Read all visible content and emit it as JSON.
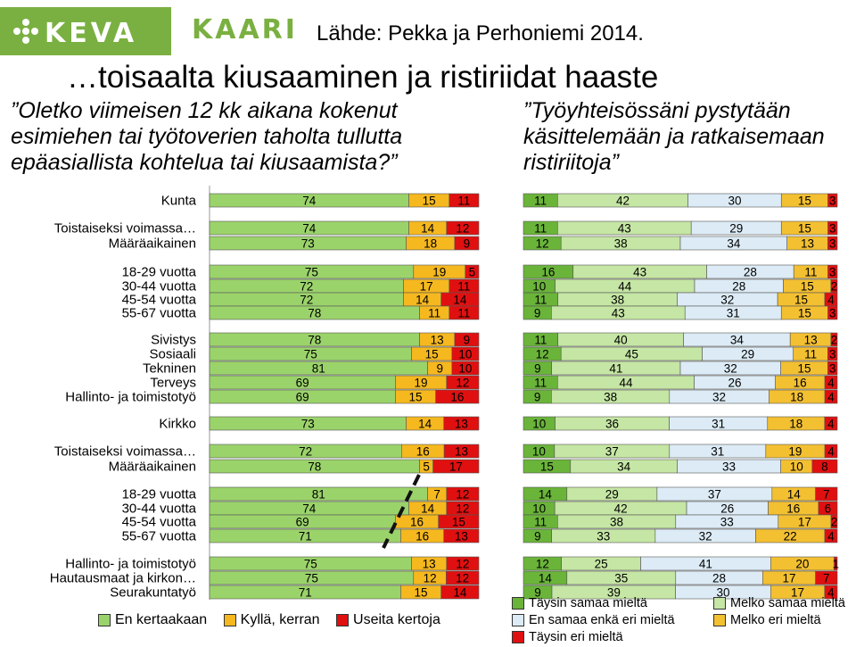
{
  "header": {
    "keva_logo": "KEVA",
    "kaari_logo": "KAARI",
    "source": "Lähde: Pekka ja Perhoniemi 2014."
  },
  "title": "…toisaalta kiusaaminen ja ristiriidat haaste",
  "question_left": "”Oletko viimeisen 12 kk aikana kokenut esimiehen tai työtoverien taholta tullutta epäasiallista kohtelua tai kiusaamista?”",
  "question_right": "”Työyhteisössäni pystytään käsittelemään ja ratkaisemaan ristiriitoja”",
  "colors": {
    "never": "#9bd36b",
    "once": "#f5b81f",
    "often": "#e01010",
    "agree_full": "#6ab43a",
    "agree_some": "#c5e6a4",
    "neutral": "#dcebf5",
    "disagree_some": "#f3c032",
    "disagree_full": "#e01010"
  },
  "chart_data": [
    {
      "type": "bar",
      "stacked": true,
      "orientation": "horizontal",
      "categories": [
        "Kunta",
        "Toistaiseksi voimassa…",
        "Määräaikainen",
        "18-29 vuotta",
        "30-44 vuotta",
        "45-54 vuotta",
        "55-67 vuotta",
        "Sivistys",
        "Sosiaali",
        "Tekninen",
        "Terveys",
        "Hallinto- ja toimistotyö",
        "Kirkko",
        "Toistaiseksi voimassa…",
        "Määräaikainen",
        "18-29 vuotta",
        "30-44 vuotta",
        "45-54 vuotta",
        "55-67 vuotta",
        "Hallinto- ja toimistotyö",
        "Hautausmaat ja kirkon…",
        "Seurakuntatyö"
      ],
      "series": [
        {
          "name": "En kertaakaan",
          "values": [
            74,
            74,
            73,
            75,
            72,
            72,
            78,
            78,
            75,
            81,
            69,
            69,
            73,
            72,
            78,
            81,
            74,
            69,
            71,
            75,
            75,
            71
          ]
        },
        {
          "name": "Kyllä, kerran",
          "values": [
            15,
            14,
            18,
            19,
            17,
            14,
            11,
            13,
            15,
            9,
            19,
            15,
            14,
            16,
            5,
            7,
            14,
            16,
            16,
            13,
            12,
            15
          ]
        },
        {
          "name": "Useita kertoja",
          "values": [
            11,
            12,
            9,
            5,
            11,
            14,
            11,
            9,
            10,
            10,
            12,
            16,
            13,
            13,
            17,
            12,
            12,
            15,
            13,
            12,
            12,
            14
          ]
        }
      ],
      "xlim": [
        0,
        100
      ]
    },
    {
      "type": "bar",
      "stacked": true,
      "orientation": "horizontal",
      "categories": [
        "Kunta",
        "Toistaiseksi voimassa…",
        "Määräaikainen",
        "18-29 vuotta",
        "30-44 vuotta",
        "45-54 vuotta",
        "55-67 vuotta",
        "Sivistys",
        "Sosiaali",
        "Tekninen",
        "Terveys",
        "Hallinto- ja toimistotyö",
        "Kirkko",
        "Toistaiseksi voimassa…",
        "Määräaikainen",
        "18-29 vuotta",
        "30-44 vuotta",
        "45-54 vuotta",
        "55-67 vuotta",
        "Hallinto- ja toimistotyö",
        "Hautausmaat ja kirkon…",
        "Seurakuntatyö"
      ],
      "series": [
        {
          "name": "Täysin samaa mieltä",
          "values": [
            11,
            11,
            12,
            16,
            10,
            11,
            9,
            11,
            12,
            9,
            11,
            9,
            10,
            10,
            15,
            14,
            10,
            11,
            9,
            12,
            14,
            9
          ]
        },
        {
          "name": "Melko samaa mieltä",
          "values": [
            42,
            43,
            38,
            43,
            44,
            38,
            43,
            40,
            45,
            41,
            44,
            38,
            36,
            37,
            34,
            29,
            42,
            38,
            33,
            25,
            35,
            39
          ]
        },
        {
          "name": "En samaa enkä eri mieltä",
          "values": [
            30,
            29,
            34,
            28,
            28,
            32,
            31,
            34,
            29,
            32,
            26,
            32,
            31,
            31,
            33,
            37,
            26,
            33,
            32,
            41,
            28,
            30
          ]
        },
        {
          "name": "Melko eri mieltä",
          "values": [
            15,
            15,
            13,
            11,
            15,
            15,
            15,
            13,
            11,
            15,
            16,
            18,
            18,
            19,
            10,
            14,
            16,
            17,
            22,
            20,
            17,
            17
          ]
        },
        {
          "name": "Täysin eri mieltä",
          "values": [
            3,
            3,
            3,
            3,
            2,
            4,
            3,
            2,
            3,
            3,
            4,
            4,
            4,
            4,
            8,
            7,
            6,
            2,
            4,
            1,
            7,
            4
          ]
        }
      ],
      "xlim": [
        0,
        100
      ]
    }
  ]
}
